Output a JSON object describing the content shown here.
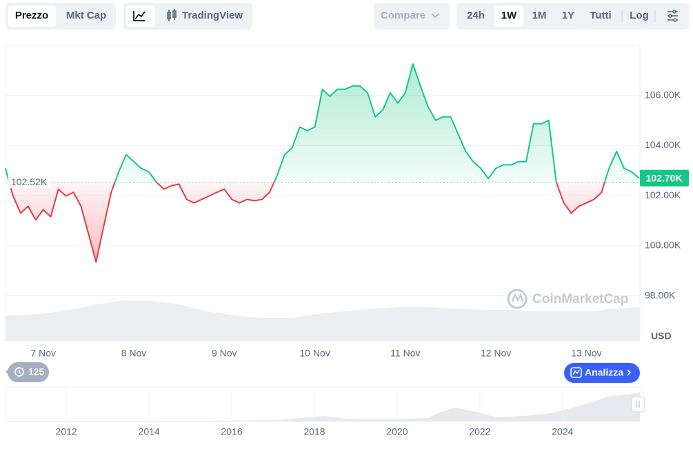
{
  "toolbar": {
    "metric_tabs": [
      "Prezzo",
      "Mkt Cap"
    ],
    "tradingview": "TradingView",
    "compare": "Compare",
    "ranges": [
      "24h",
      "1W",
      "1M",
      "1Y",
      "Tutti"
    ],
    "log": "Log"
  },
  "chart_data": {
    "type": "line",
    "categories": [
      null,
      null,
      null,
      null,
      null,
      "7 Nov",
      null,
      null,
      null,
      null,
      null,
      null,
      null,
      null,
      null,
      null,
      null,
      "8 Nov",
      null,
      null,
      null,
      null,
      null,
      null,
      null,
      null,
      null,
      null,
      null,
      "9 Nov",
      null,
      null,
      null,
      null,
      null,
      null,
      null,
      null,
      null,
      null,
      null,
      "10 Nov",
      null,
      null,
      null,
      null,
      null,
      null,
      null,
      null,
      null,
      null,
      null,
      "11 Nov",
      null,
      null,
      null,
      null,
      null,
      null,
      null,
      null,
      null,
      null,
      null,
      "12 Nov",
      null,
      null,
      null,
      null,
      null,
      null,
      null,
      null,
      null,
      null,
      null,
      "13 Nov",
      null,
      null,
      null,
      null,
      null,
      null,
      null
    ],
    "values": [
      103090,
      101990,
      101300,
      101580,
      101030,
      101440,
      101160,
      102260,
      101990,
      102130,
      101580,
      100480,
      99350,
      100750,
      102130,
      102950,
      103640,
      103360,
      103090,
      102950,
      102540,
      102260,
      102400,
      102460,
      101850,
      101710,
      101850,
      101990,
      102130,
      102260,
      101850,
      101710,
      101850,
      101800,
      101850,
      102130,
      102810,
      103640,
      103910,
      104740,
      104600,
      104740,
      106250,
      105970,
      106250,
      106250,
      106380,
      106380,
      106110,
      105150,
      105420,
      106110,
      105700,
      106110,
      107260,
      106380,
      105560,
      105010,
      105150,
      105150,
      104460,
      103770,
      103360,
      103090,
      102680,
      103090,
      103230,
      103230,
      103360,
      103360,
      104870,
      104870,
      105010,
      102540,
      101710,
      101300,
      101580,
      101710,
      101850,
      102130,
      103090,
      103770,
      103090,
      102950,
      102700
    ],
    "ylim": [
      96200,
      108000
    ],
    "yticks": [
      {
        "value": 98000,
        "label": "98.00K"
      },
      {
        "value": 100000,
        "label": "100.00K"
      },
      {
        "value": 102000,
        "label": "102.00K"
      },
      {
        "value": 104000,
        "label": "104.00K"
      },
      {
        "value": 106000,
        "label": "106.00K"
      }
    ],
    "y_unit": "USD",
    "grid": true,
    "baseline": {
      "value": 102520,
      "label": "102.52K"
    },
    "current": {
      "value": 102700,
      "label": "102.70K"
    },
    "up_color": "#16c784",
    "down_color": "#ea3943",
    "watermark": "CoinMarketCap"
  },
  "history_badge": "125",
  "analyze": "Analizza",
  "navigator": {
    "xlim": [
      2010.53,
      2025.87
    ],
    "xticks": [
      2012,
      2014,
      2016,
      2018,
      2020,
      2022,
      2024
    ]
  }
}
